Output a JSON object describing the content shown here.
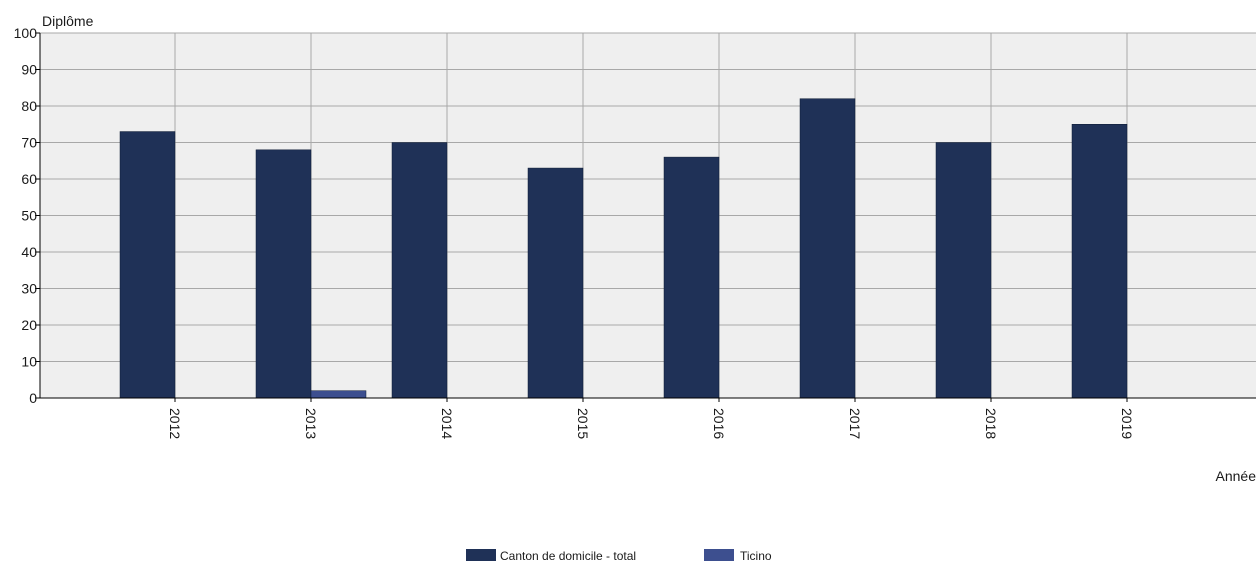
{
  "chart_data": {
    "type": "bar",
    "title": "",
    "xlabel": "Année",
    "ylabel": "Diplôme",
    "categories": [
      "2012",
      "2013",
      "2014",
      "2015",
      "2016",
      "2017",
      "2018",
      "2019"
    ],
    "series": [
      {
        "name": "Canton de domicile - total",
        "color": "#1f3157",
        "values": [
          73,
          68,
          70,
          63,
          66,
          82,
          70,
          75
        ]
      },
      {
        "name": "Ticino",
        "color": "#3d4f8f",
        "values": [
          0,
          2,
          0,
          0,
          0,
          0,
          0,
          0
        ]
      }
    ],
    "ylim": [
      0,
      100
    ],
    "yticks": [
      0,
      10,
      20,
      30,
      40,
      50,
      60,
      70,
      80,
      90,
      100
    ],
    "grid": true,
    "legend_position": "bottom-center"
  }
}
